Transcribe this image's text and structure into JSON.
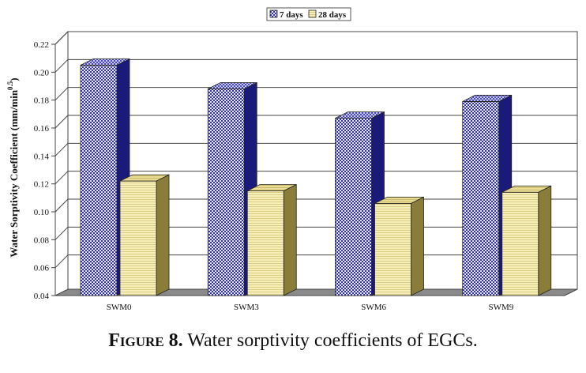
{
  "chart_data": {
    "type": "bar",
    "categories": [
      "SWM0",
      "SWM3",
      "SWM6",
      "SWM9"
    ],
    "series": [
      {
        "name": "7 days",
        "values": [
          0.205,
          0.188,
          0.167,
          0.179
        ],
        "color": "#3a3a9e"
      },
      {
        "name": "28 days",
        "values": [
          0.122,
          0.115,
          0.106,
          0.114
        ],
        "color": "#f2e7a4"
      }
    ],
    "ylabel": "Water Sorptivity Coefficient (mm/min",
    "ylabel_sup": "0.5",
    "ylabel_end": ")",
    "xlabel": "",
    "ylim": [
      0.04,
      0.22
    ],
    "yticks": [
      "0.04",
      "0.06",
      "0.08",
      "0.10",
      "0.12",
      "0.14",
      "0.16",
      "0.18",
      "0.20",
      "0.22"
    ],
    "grid": true,
    "legend_position": "top"
  },
  "caption": {
    "label": "Figure 8.",
    "text": " Water sorptivity coefficients of EGCs."
  }
}
